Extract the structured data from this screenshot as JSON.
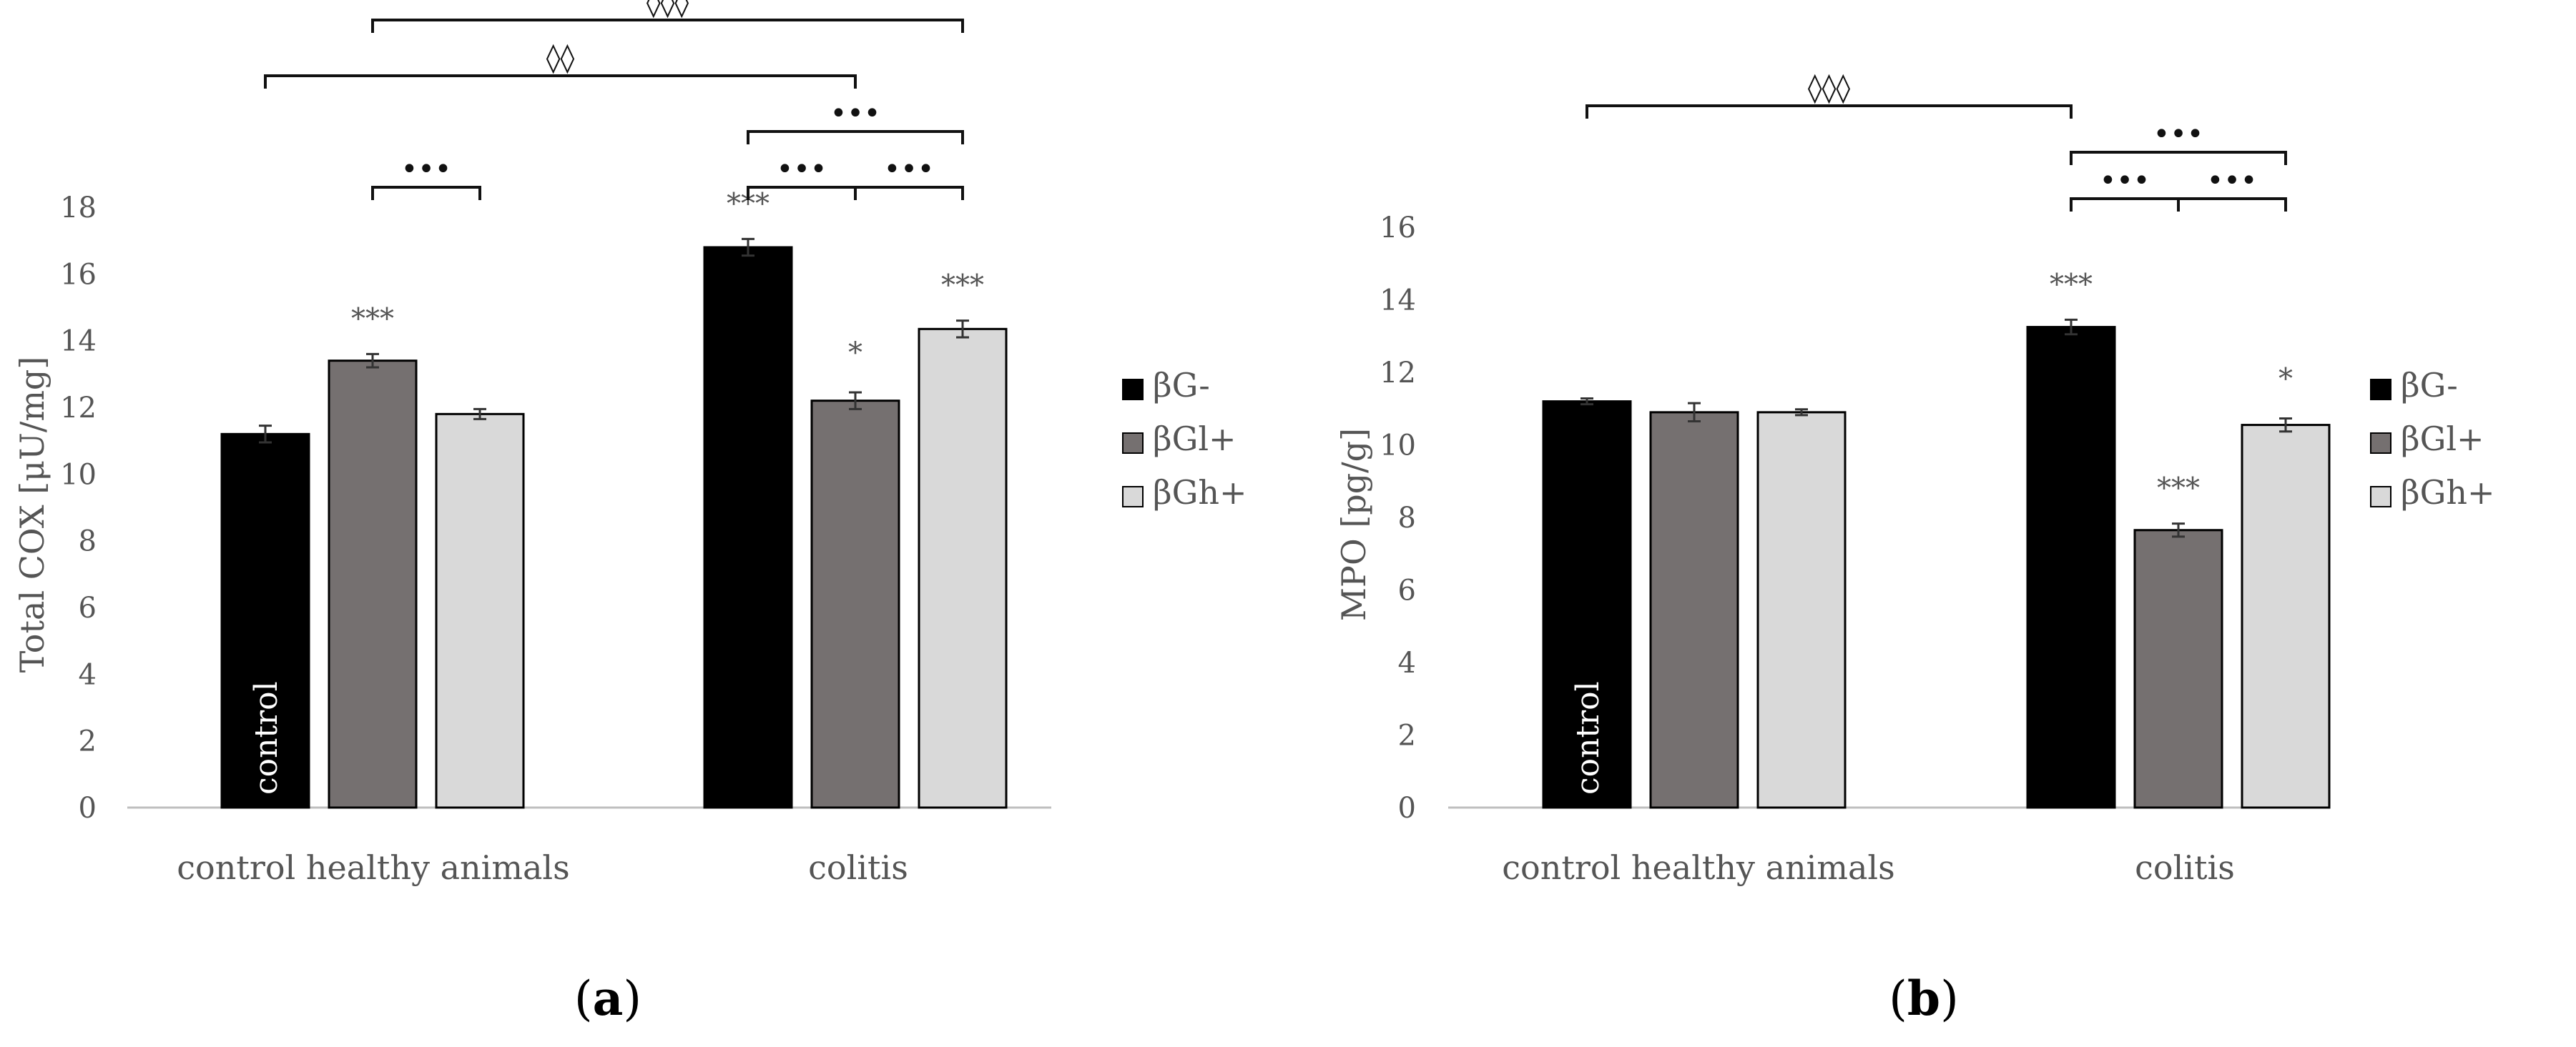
{
  "colors": {
    "bG_minus": "#000000",
    "bGl_plus": "#757070",
    "bGh_plus": "#d9d9d9",
    "axis": "#bfbfbf",
    "text": "#555555"
  },
  "chart_data": [
    {
      "type": "bar",
      "panel_label": "(a)",
      "panel_label_parts": {
        "open": "(",
        "letter": "a",
        "close": ")"
      },
      "ylabel": "Total COX [μU/mg]",
      "ylim": [
        0,
        18
      ],
      "yticks": [
        0,
        2,
        4,
        6,
        8,
        10,
        12,
        14,
        16,
        18
      ],
      "categories": [
        "control healthy animals",
        "colitis"
      ],
      "series": [
        {
          "name": "βG-",
          "values": [
            11.2,
            16.8
          ],
          "errors": [
            0.25,
            0.25
          ]
        },
        {
          "name": "βGl+",
          "values": [
            13.4,
            12.2
          ],
          "errors": [
            0.2,
            0.25
          ]
        },
        {
          "name": "βGh+",
          "values": [
            11.8,
            14.35
          ],
          "errors": [
            0.15,
            0.25
          ]
        }
      ],
      "bar_labels": [
        {
          "category": 0,
          "series": 0,
          "text": "control"
        }
      ],
      "significance": [
        {
          "category": 0,
          "series": 1,
          "text": "***"
        },
        {
          "category": 1,
          "series": 0,
          "text": "***"
        },
        {
          "category": 1,
          "series": 1,
          "text": "*"
        },
        {
          "category": 1,
          "series": 2,
          "text": "***"
        }
      ],
      "brackets": [
        {
          "from": [
            0,
            1
          ],
          "to": [
            0,
            2
          ],
          "text": "•••",
          "level": 0
        },
        {
          "from": [
            1,
            0
          ],
          "to": [
            1,
            1
          ],
          "text": "•••",
          "level": 0
        },
        {
          "from": [
            1,
            1
          ],
          "to": [
            1,
            2
          ],
          "text": "•••",
          "level": 0
        },
        {
          "from": [
            1,
            0
          ],
          "to": [
            1,
            2
          ],
          "text": "•••",
          "level": 1
        },
        {
          "from": [
            0,
            0
          ],
          "to": [
            1,
            1
          ],
          "text": "◊◊",
          "level": 2
        },
        {
          "from": [
            0,
            1
          ],
          "to": [
            1,
            2
          ],
          "text": "◊◊◊",
          "level": 3
        }
      ],
      "legend": [
        "βG-",
        "βGl+",
        "βGh+"
      ],
      "legend_position": "right"
    },
    {
      "type": "bar",
      "panel_label": "(b)",
      "panel_label_parts": {
        "open": "(",
        "letter": "b",
        "close": ")"
      },
      "ylabel": "MPO [pg/g]",
      "ylim": [
        0,
        16
      ],
      "yticks": [
        0,
        2,
        4,
        6,
        8,
        10,
        12,
        14,
        16
      ],
      "categories": [
        "control healthy animals",
        "colitis"
      ],
      "series": [
        {
          "name": "βG-",
          "values": [
            11.2,
            13.25
          ],
          "errors": [
            0.08,
            0.2
          ]
        },
        {
          "name": "βGl+",
          "values": [
            10.9,
            7.65
          ],
          "errors": [
            0.25,
            0.18
          ]
        },
        {
          "name": "βGh+",
          "values": [
            10.9,
            10.55
          ],
          "errors": [
            0.08,
            0.18
          ]
        }
      ],
      "bar_labels": [
        {
          "category": 0,
          "series": 0,
          "text": "control"
        }
      ],
      "significance": [
        {
          "category": 1,
          "series": 0,
          "text": "***"
        },
        {
          "category": 1,
          "series": 1,
          "text": "***"
        },
        {
          "category": 1,
          "series": 2,
          "text": "*"
        }
      ],
      "brackets": [
        {
          "from": [
            1,
            0
          ],
          "to": [
            1,
            1
          ],
          "text": "•••",
          "level": 0
        },
        {
          "from": [
            1,
            1
          ],
          "to": [
            1,
            2
          ],
          "text": "•••",
          "level": 0
        },
        {
          "from": [
            1,
            0
          ],
          "to": [
            1,
            2
          ],
          "text": "•••",
          "level": 1
        },
        {
          "from": [
            0,
            0
          ],
          "to": [
            1,
            0
          ],
          "text": "◊◊◊",
          "level": 2
        }
      ],
      "legend": [
        "βG-",
        "βGl+",
        "βGh+"
      ],
      "legend_position": "right"
    }
  ]
}
